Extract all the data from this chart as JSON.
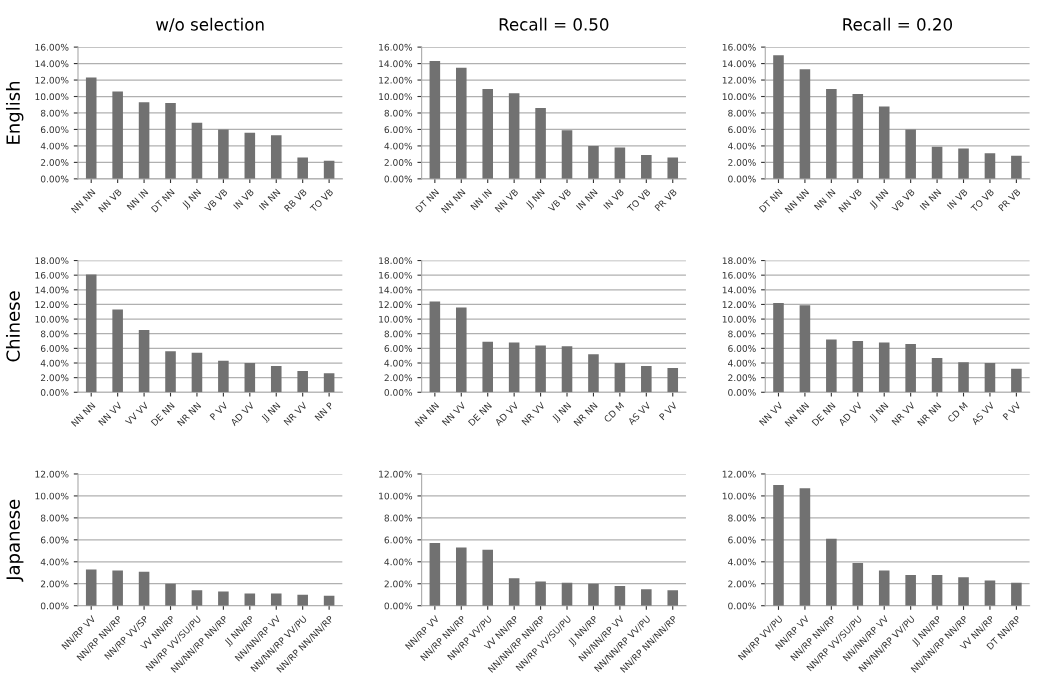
{
  "chart_data": [
    {
      "type": "bar",
      "title": "w/o selection",
      "ylabel": "English",
      "categories": [
        "NN NN",
        "NN VB",
        "NN IN",
        "DT NN",
        "JJ NN",
        "VB VB",
        "IN VB",
        "IN NN",
        "RB VB",
        "TO VB"
      ],
      "values": [
        12.3,
        10.6,
        9.3,
        9.2,
        6.8,
        6.0,
        5.6,
        5.3,
        2.6,
        2.2
      ],
      "color": "#717171",
      "grid": "y",
      "ylim": [
        0,
        16
      ],
      "yticks": [
        {
          "value": 0,
          "label": "0.00%"
        },
        {
          "value": 2,
          "label": "2.00%"
        },
        {
          "value": 4,
          "label": "4.00%"
        },
        {
          "value": 6,
          "label": "6.00%"
        },
        {
          "value": 8,
          "label": "8.00%"
        },
        {
          "value": 10,
          "label": "10.00%"
        },
        {
          "value": 12,
          "label": "12.00%"
        },
        {
          "value": 14,
          "label": "14.00%"
        },
        {
          "value": 16,
          "label": "16.00%"
        }
      ]
    },
    {
      "type": "bar",
      "title": "Recall = 0.50",
      "categories": [
        "DT NN",
        "NN NN",
        "NN IN",
        "NN VB",
        "JJ NN",
        "VB VB",
        "IN NN",
        "IN VB",
        "TO VB",
        "PR VB"
      ],
      "values": [
        14.3,
        13.5,
        10.9,
        10.4,
        8.6,
        5.9,
        4.0,
        3.8,
        2.9,
        2.6
      ],
      "color": "#717171",
      "grid": "y",
      "ylim": [
        0,
        16
      ],
      "yticks": [
        {
          "value": 0,
          "label": "0.00%"
        },
        {
          "value": 2,
          "label": "2.00%"
        },
        {
          "value": 4,
          "label": "4.00%"
        },
        {
          "value": 6,
          "label": "6.00%"
        },
        {
          "value": 8,
          "label": "8.00%"
        },
        {
          "value": 10,
          "label": "10.00%"
        },
        {
          "value": 12,
          "label": "12.00%"
        },
        {
          "value": 14,
          "label": "14.00%"
        },
        {
          "value": 16,
          "label": "16.00%"
        }
      ]
    },
    {
      "type": "bar",
      "title": "Recall = 0.20",
      "categories": [
        "DT NN",
        "NN NN",
        "NN IN",
        "NN VB",
        "JJ NN",
        "VB VB",
        "IN NN",
        "IN VB",
        "TO VB",
        "PR VB"
      ],
      "values": [
        15.0,
        13.3,
        10.9,
        10.3,
        8.8,
        6.0,
        3.9,
        3.7,
        3.1,
        2.8
      ],
      "color": "#717171",
      "grid": "y",
      "ylim": [
        0,
        16
      ],
      "yticks": [
        {
          "value": 0,
          "label": "0.00%"
        },
        {
          "value": 2,
          "label": "2.00%"
        },
        {
          "value": 4,
          "label": "4.00%"
        },
        {
          "value": 6,
          "label": "6.00%"
        },
        {
          "value": 8,
          "label": "8.00%"
        },
        {
          "value": 10,
          "label": "10.00%"
        },
        {
          "value": 12,
          "label": "12.00%"
        },
        {
          "value": 14,
          "label": "14.00%"
        },
        {
          "value": 16,
          "label": "16.00%"
        }
      ]
    },
    {
      "type": "bar",
      "ylabel": "Chinese",
      "categories": [
        "NN NN",
        "NN VV",
        "VV VV",
        "DE NN",
        "NR NN",
        "P VV",
        "AD VV",
        "JJ NN",
        "NR VV",
        "NN P"
      ],
      "values": [
        16.1,
        11.3,
        8.5,
        5.6,
        5.4,
        4.3,
        4.0,
        3.6,
        2.9,
        2.6
      ],
      "color": "#717171",
      "grid": "y",
      "ylim": [
        0,
        18
      ],
      "yticks": [
        {
          "value": 0,
          "label": "0.00%"
        },
        {
          "value": 2,
          "label": "2.00%"
        },
        {
          "value": 4,
          "label": "4.00%"
        },
        {
          "value": 6,
          "label": "6.00%"
        },
        {
          "value": 8,
          "label": "8.00%"
        },
        {
          "value": 10,
          "label": "10.00%"
        },
        {
          "value": 12,
          "label": "12.00%"
        },
        {
          "value": 14,
          "label": "14.00%"
        },
        {
          "value": 16,
          "label": "16.00%"
        },
        {
          "value": 18,
          "label": "18.00%"
        }
      ]
    },
    {
      "type": "bar",
      "categories": [
        "NN NN",
        "NN VV",
        "DE NN",
        "AD VV",
        "NR VV",
        "JJ NN",
        "NR NN",
        "CD M",
        "AS VV",
        "P VV"
      ],
      "values": [
        12.4,
        11.6,
        6.9,
        6.8,
        6.4,
        6.3,
        5.2,
        4.0,
        3.6,
        3.3
      ],
      "color": "#717171",
      "grid": "y",
      "ylim": [
        0,
        18
      ],
      "yticks": [
        {
          "value": 0,
          "label": "0.00%"
        },
        {
          "value": 2,
          "label": "2.00%"
        },
        {
          "value": 4,
          "label": "4.00%"
        },
        {
          "value": 6,
          "label": "6.00%"
        },
        {
          "value": 8,
          "label": "8.00%"
        },
        {
          "value": 10,
          "label": "10.00%"
        },
        {
          "value": 12,
          "label": "12.00%"
        },
        {
          "value": 14,
          "label": "14.00%"
        },
        {
          "value": 16,
          "label": "16.00%"
        },
        {
          "value": 18,
          "label": "18.00%"
        }
      ]
    },
    {
      "type": "bar",
      "categories": [
        "NN VV",
        "NN NN",
        "DE NN",
        "AD VV",
        "JJ NN",
        "NR VV",
        "NR NN",
        "CD M",
        "AS VV",
        "P VV"
      ],
      "values": [
        12.2,
        11.9,
        7.2,
        7.0,
        6.8,
        6.6,
        4.7,
        4.1,
        4.0,
        3.2
      ],
      "color": "#717171",
      "grid": "y",
      "ylim": [
        0,
        18
      ],
      "yticks": [
        {
          "value": 0,
          "label": "0.00%"
        },
        {
          "value": 2,
          "label": "2.00%"
        },
        {
          "value": 4,
          "label": "4.00%"
        },
        {
          "value": 6,
          "label": "6.00%"
        },
        {
          "value": 8,
          "label": "8.00%"
        },
        {
          "value": 10,
          "label": "10.00%"
        },
        {
          "value": 12,
          "label": "12.00%"
        },
        {
          "value": 14,
          "label": "14.00%"
        },
        {
          "value": 16,
          "label": "16.00%"
        },
        {
          "value": 18,
          "label": "18.00%"
        }
      ]
    },
    {
      "type": "bar",
      "ylabel": "Japanese",
      "categories": [
        "NN/RP VV",
        "NN/RP NN/RP",
        "NN/RP VV/SP",
        "VV NN/RP",
        "NN/RP VV/SU/PU",
        "NN/NN/RP NN/RP",
        "JJ NN/RP",
        "NN/NN/RP VV",
        "NN/NN/RP VV/PU",
        "NN/RP NN/NN/RP"
      ],
      "values": [
        3.3,
        3.2,
        3.1,
        2.0,
        1.4,
        1.3,
        1.1,
        1.1,
        1.0,
        0.9
      ],
      "color": "#717171",
      "grid": "y",
      "ylim": [
        0,
        12
      ],
      "yticks": [
        {
          "value": 0,
          "label": "0.00%"
        },
        {
          "value": 2,
          "label": "2.00%"
        },
        {
          "value": 4,
          "label": "4.00%"
        },
        {
          "value": 6,
          "label": "6.00%"
        },
        {
          "value": 8,
          "label": "8.00%"
        },
        {
          "value": 10,
          "label": "10.00%"
        },
        {
          "value": 12,
          "label": "12.00%"
        }
      ]
    },
    {
      "type": "bar",
      "categories": [
        "NN/RP VV",
        "NN/RP NN/RP",
        "NN/RP VV/PU",
        "VV NN/RP",
        "NN/NN/RP NN/RP",
        "NN/RP VV/SU/PU",
        "JJ NN/RP",
        "NN/NN/RP VV",
        "NN/NN/RP VV/PU",
        "NN/RP NN/NN/RP"
      ],
      "values": [
        5.7,
        5.3,
        5.1,
        2.5,
        2.2,
        2.1,
        2.0,
        1.8,
        1.5,
        1.4
      ],
      "color": "#717171",
      "grid": "y",
      "ylim": [
        0,
        12
      ],
      "yticks": [
        {
          "value": 0,
          "label": "0.00%"
        },
        {
          "value": 2,
          "label": "2.00%"
        },
        {
          "value": 4,
          "label": "4.00%"
        },
        {
          "value": 6,
          "label": "6.00%"
        },
        {
          "value": 8,
          "label": "8.00%"
        },
        {
          "value": 10,
          "label": "10.00%"
        },
        {
          "value": 12,
          "label": "12.00%"
        }
      ]
    },
    {
      "type": "bar",
      "categories": [
        "NN/RP VV/PU",
        "NN/RP VV",
        "NN/RP NN/RP",
        "NN/RP VV/SU/PU",
        "NN/NN/RP VV",
        "NN/NN/RP VV/PU",
        "JJ NN/RP",
        "NN/NN/RP NN/RP",
        "VV NN/RP",
        "DT NN/RP"
      ],
      "values": [
        11.0,
        10.7,
        6.1,
        3.9,
        3.2,
        2.8,
        2.8,
        2.6,
        2.3,
        2.1
      ],
      "color": "#717171",
      "grid": "y",
      "ylim": [
        0,
        12
      ],
      "yticks": [
        {
          "value": 0,
          "label": "0.00%"
        },
        {
          "value": 2,
          "label": "2.00%"
        },
        {
          "value": 4,
          "label": "4.00%"
        },
        {
          "value": 6,
          "label": "6.00%"
        },
        {
          "value": 8,
          "label": "8.00%"
        },
        {
          "value": 10,
          "label": "10.00%"
        },
        {
          "value": 12,
          "label": "12.00%"
        }
      ]
    }
  ]
}
